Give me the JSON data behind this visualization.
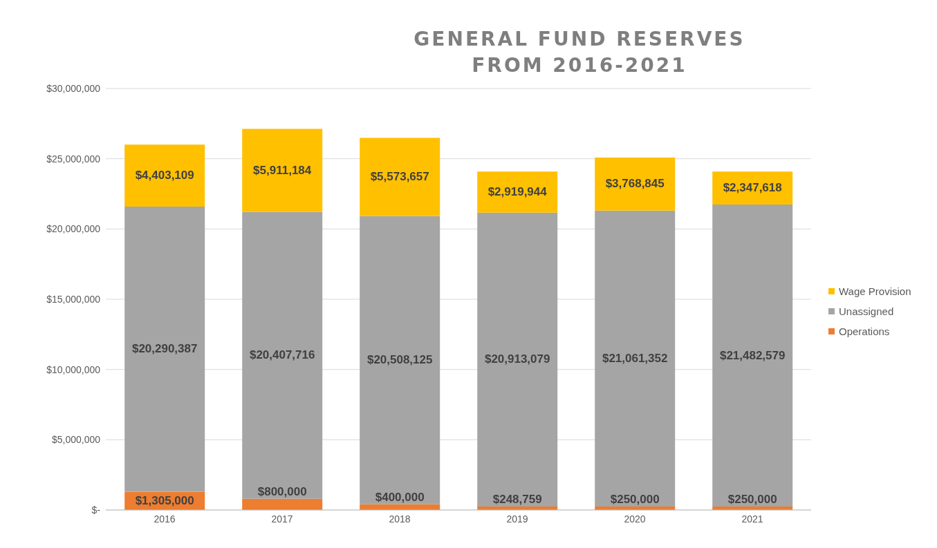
{
  "chart_data": {
    "type": "bar",
    "title": "GENERAL FUND RESERVES FROM 2016-2021",
    "categories": [
      "2016",
      "2017",
      "2018",
      "2019",
      "2020",
      "2021"
    ],
    "stacked": true,
    "series": [
      {
        "name": "Operations",
        "color": "#ed7d31",
        "values": [
          1305000,
          800000,
          400000,
          248759,
          250000,
          250000
        ],
        "value_labels": [
          "$1,305,000",
          "$800,000",
          "$400,000",
          "$248,759",
          "$250,000",
          "$250,000"
        ]
      },
      {
        "name": "Unassigned",
        "color": "#a5a5a5",
        "values": [
          20290387,
          20407716,
          20508125,
          20913079,
          21061352,
          21482579
        ],
        "value_labels": [
          "$20,290,387",
          "$20,407,716",
          "$20,508,125",
          "$20,913,079",
          "$21,061,352",
          "$21,482,579"
        ]
      },
      {
        "name": "Wage Provision",
        "color": "#ffc000",
        "values": [
          4403109,
          5911184,
          5573657,
          2919944,
          3768845,
          2347618
        ],
        "value_labels": [
          "$4,403,109",
          "$5,911,184",
          "$5,573,657",
          "$2,919,944",
          "$3,768,845",
          "$2,347,618"
        ]
      }
    ],
    "ylim": [
      0,
      30000000
    ],
    "yticks": [
      {
        "value": 0,
        "label": "$-"
      },
      {
        "value": 5000000,
        "label": "$5,000,000"
      },
      {
        "value": 10000000,
        "label": "$10,000,000"
      },
      {
        "value": 15000000,
        "label": "$15,000,000"
      },
      {
        "value": 20000000,
        "label": "$20,000,000"
      },
      {
        "value": 25000000,
        "label": "$25,000,000"
      },
      {
        "value": 30000000,
        "label": "$30,000,000"
      }
    ],
    "grid": "y",
    "legend": "right"
  }
}
